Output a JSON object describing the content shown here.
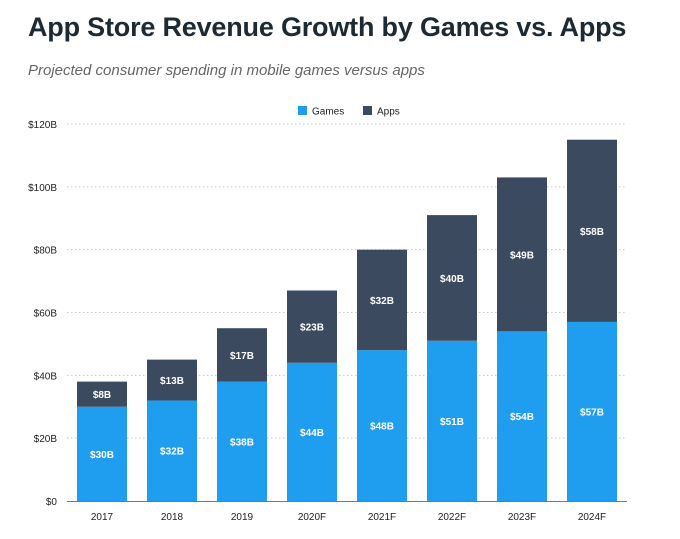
{
  "chart_data": {
    "type": "bar",
    "stacked": true,
    "title": "App Store Revenue Growth by Games vs. Apps",
    "subtitle": "Projected consumer spending in mobile games versus apps",
    "categories": [
      "2017",
      "2018",
      "2019",
      "2020F",
      "2021F",
      "2022F",
      "2023F",
      "2024F"
    ],
    "series": [
      {
        "name": "Games",
        "color": "#1f9ef0",
        "values": [
          30,
          32,
          38,
          44,
          48,
          51,
          54,
          57
        ],
        "labels": [
          "$30B",
          "$32B",
          "$38B",
          "$44B",
          "$48B",
          "$51B",
          "$54B",
          "$57B"
        ]
      },
      {
        "name": "Apps",
        "color": "#3b4a5e",
        "values": [
          8,
          13,
          17,
          23,
          32,
          40,
          49,
          58
        ],
        "labels": [
          "$8B",
          "$13B",
          "$17B",
          "$23B",
          "$32B",
          "$40B",
          "$49B",
          "$58B"
        ]
      }
    ],
    "ylim": [
      0,
      120
    ],
    "yticks": [
      0,
      20,
      40,
      60,
      80,
      100,
      120
    ],
    "ytick_labels": [
      "$0",
      "$20B",
      "$40B",
      "$60B",
      "$80B",
      "$100B",
      "$120B"
    ],
    "xlabel": "",
    "ylabel": "",
    "grid": true,
    "legend_position": "top-center"
  }
}
